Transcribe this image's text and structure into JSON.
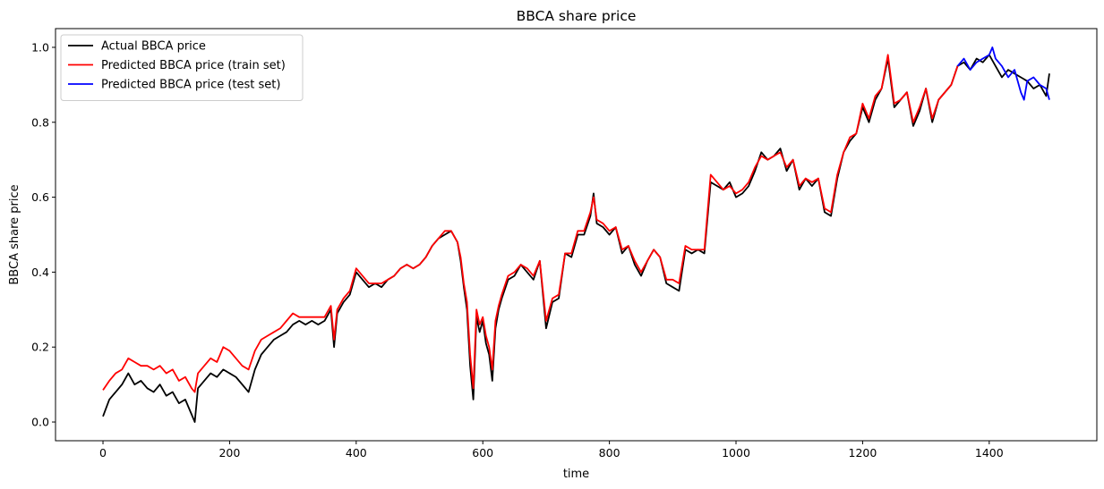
{
  "chart_data": {
    "type": "line",
    "title": "BBCA share price",
    "xlabel": "time",
    "ylabel": "BBCA share price",
    "xlim": [
      -75,
      1570
    ],
    "ylim": [
      -0.05,
      1.05
    ],
    "xticks": [
      0,
      200,
      400,
      600,
      800,
      1000,
      1200,
      1400
    ],
    "yticks": [
      0.0,
      0.2,
      0.4,
      0.6,
      0.8,
      1.0
    ],
    "xtick_labels": [
      "0",
      "200",
      "400",
      "600",
      "800",
      "1000",
      "1200",
      "1400"
    ],
    "ytick_labels": [
      "0.0",
      "0.2",
      "0.4",
      "0.6",
      "0.8",
      "1.0"
    ],
    "grid": false,
    "legend_position": "top-left",
    "series": [
      {
        "name": "Actual BBCA price",
        "color": "#000000",
        "x": [
          0,
          10,
          20,
          30,
          40,
          50,
          60,
          70,
          80,
          90,
          100,
          110,
          120,
          130,
          140,
          145,
          150,
          160,
          170,
          180,
          190,
          200,
          210,
          220,
          230,
          240,
          250,
          260,
          270,
          280,
          290,
          300,
          310,
          320,
          330,
          340,
          350,
          360,
          365,
          370,
          380,
          390,
          400,
          410,
          420,
          430,
          440,
          450,
          460,
          470,
          480,
          490,
          500,
          510,
          520,
          530,
          540,
          550,
          560,
          565,
          570,
          575,
          580,
          585,
          590,
          595,
          600,
          605,
          610,
          615,
          620,
          625,
          630,
          640,
          650,
          660,
          670,
          680,
          690,
          700,
          710,
          720,
          730,
          740,
          750,
          760,
          770,
          775,
          780,
          790,
          800,
          810,
          820,
          830,
          840,
          850,
          860,
          870,
          880,
          890,
          900,
          910,
          920,
          930,
          940,
          950,
          960,
          970,
          980,
          990,
          1000,
          1010,
          1020,
          1030,
          1040,
          1050,
          1060,
          1070,
          1080,
          1090,
          1100,
          1110,
          1120,
          1130,
          1140,
          1150,
          1160,
          1170,
          1180,
          1190,
          1200,
          1210,
          1220,
          1230,
          1240,
          1250,
          1260,
          1270,
          1280,
          1290,
          1300,
          1310,
          1320,
          1330,
          1340,
          1350,
          1360,
          1370,
          1380,
          1390,
          1400,
          1410,
          1420,
          1430,
          1440,
          1450,
          1460,
          1470,
          1480,
          1490,
          1495
        ],
        "y": [
          0.015,
          0.06,
          0.08,
          0.1,
          0.13,
          0.1,
          0.11,
          0.09,
          0.08,
          0.1,
          0.07,
          0.08,
          0.05,
          0.06,
          0.02,
          0.0,
          0.09,
          0.11,
          0.13,
          0.12,
          0.14,
          0.13,
          0.12,
          0.1,
          0.08,
          0.14,
          0.18,
          0.2,
          0.22,
          0.23,
          0.24,
          0.26,
          0.27,
          0.26,
          0.27,
          0.26,
          0.27,
          0.3,
          0.2,
          0.29,
          0.32,
          0.34,
          0.4,
          0.38,
          0.36,
          0.37,
          0.36,
          0.38,
          0.39,
          0.41,
          0.42,
          0.41,
          0.42,
          0.44,
          0.47,
          0.49,
          0.5,
          0.51,
          0.48,
          0.43,
          0.36,
          0.3,
          0.15,
          0.06,
          0.28,
          0.24,
          0.27,
          0.21,
          0.18,
          0.11,
          0.25,
          0.3,
          0.33,
          0.38,
          0.39,
          0.42,
          0.4,
          0.38,
          0.43,
          0.25,
          0.32,
          0.33,
          0.45,
          0.44,
          0.5,
          0.5,
          0.55,
          0.61,
          0.53,
          0.52,
          0.5,
          0.52,
          0.45,
          0.47,
          0.42,
          0.39,
          0.43,
          0.46,
          0.44,
          0.37,
          0.36,
          0.35,
          0.46,
          0.45,
          0.46,
          0.45,
          0.64,
          0.63,
          0.62,
          0.64,
          0.6,
          0.61,
          0.63,
          0.67,
          0.72,
          0.7,
          0.71,
          0.73,
          0.67,
          0.7,
          0.62,
          0.65,
          0.63,
          0.65,
          0.56,
          0.55,
          0.65,
          0.72,
          0.75,
          0.77,
          0.84,
          0.8,
          0.86,
          0.89,
          0.97,
          0.84,
          0.86,
          0.88,
          0.79,
          0.83,
          0.89,
          0.8,
          0.86,
          0.88,
          0.9,
          0.95,
          0.96,
          0.94,
          0.97,
          0.96,
          0.98,
          0.95,
          0.92,
          0.94,
          0.93,
          0.92,
          0.91,
          0.89,
          0.9,
          0.87,
          0.93
        ]
      },
      {
        "name": "Predicted BBCA price (train set)",
        "color": "#ff0000",
        "x": [
          0,
          10,
          20,
          30,
          40,
          50,
          60,
          70,
          80,
          90,
          100,
          110,
          120,
          130,
          140,
          145,
          150,
          160,
          170,
          180,
          190,
          200,
          210,
          220,
          230,
          240,
          250,
          260,
          270,
          280,
          290,
          300,
          310,
          320,
          330,
          340,
          350,
          360,
          365,
          370,
          380,
          390,
          400,
          410,
          420,
          430,
          440,
          450,
          460,
          470,
          480,
          490,
          500,
          510,
          520,
          530,
          540,
          550,
          560,
          565,
          570,
          575,
          580,
          585,
          590,
          595,
          600,
          605,
          610,
          615,
          620,
          625,
          630,
          640,
          650,
          660,
          670,
          680,
          690,
          700,
          710,
          720,
          730,
          740,
          750,
          760,
          770,
          775,
          780,
          790,
          800,
          810,
          820,
          830,
          840,
          850,
          860,
          870,
          880,
          890,
          900,
          910,
          920,
          930,
          940,
          950,
          960,
          970,
          980,
          990,
          1000,
          1010,
          1020,
          1030,
          1040,
          1050,
          1060,
          1070,
          1080,
          1090,
          1100,
          1110,
          1120,
          1130,
          1140,
          1150,
          1160,
          1170,
          1180,
          1190,
          1200,
          1210,
          1220,
          1230,
          1240,
          1250,
          1260,
          1270,
          1280,
          1290,
          1300,
          1310,
          1320,
          1330,
          1340,
          1350
        ],
        "y": [
          0.085,
          0.11,
          0.13,
          0.14,
          0.17,
          0.16,
          0.15,
          0.15,
          0.14,
          0.15,
          0.13,
          0.14,
          0.11,
          0.12,
          0.09,
          0.08,
          0.13,
          0.15,
          0.17,
          0.16,
          0.2,
          0.19,
          0.17,
          0.15,
          0.14,
          0.19,
          0.22,
          0.23,
          0.24,
          0.25,
          0.27,
          0.29,
          0.28,
          0.28,
          0.28,
          0.28,
          0.28,
          0.31,
          0.22,
          0.3,
          0.33,
          0.35,
          0.41,
          0.39,
          0.37,
          0.37,
          0.37,
          0.38,
          0.39,
          0.41,
          0.42,
          0.41,
          0.42,
          0.44,
          0.47,
          0.49,
          0.51,
          0.51,
          0.48,
          0.44,
          0.37,
          0.32,
          0.18,
          0.09,
          0.3,
          0.26,
          0.28,
          0.23,
          0.2,
          0.14,
          0.27,
          0.31,
          0.34,
          0.39,
          0.4,
          0.42,
          0.41,
          0.39,
          0.43,
          0.27,
          0.33,
          0.34,
          0.45,
          0.45,
          0.51,
          0.51,
          0.56,
          0.6,
          0.54,
          0.53,
          0.51,
          0.52,
          0.46,
          0.47,
          0.43,
          0.4,
          0.43,
          0.46,
          0.44,
          0.38,
          0.38,
          0.37,
          0.47,
          0.46,
          0.46,
          0.46,
          0.66,
          0.64,
          0.62,
          0.63,
          0.61,
          0.62,
          0.64,
          0.68,
          0.71,
          0.7,
          0.71,
          0.72,
          0.68,
          0.7,
          0.63,
          0.65,
          0.64,
          0.65,
          0.57,
          0.56,
          0.66,
          0.72,
          0.76,
          0.77,
          0.85,
          0.81,
          0.87,
          0.89,
          0.98,
          0.85,
          0.86,
          0.88,
          0.8,
          0.84,
          0.89,
          0.81,
          0.86,
          0.88,
          0.9,
          0.95
        ]
      },
      {
        "name": "Predicted BBCA price (test set)",
        "color": "#0000ff",
        "x": [
          1350,
          1360,
          1370,
          1380,
          1390,
          1400,
          1405,
          1410,
          1420,
          1430,
          1440,
          1450,
          1455,
          1460,
          1470,
          1480,
          1490,
          1495
        ],
        "y": [
          0.95,
          0.97,
          0.94,
          0.96,
          0.97,
          0.98,
          1.0,
          0.97,
          0.95,
          0.92,
          0.94,
          0.88,
          0.86,
          0.91,
          0.92,
          0.9,
          0.89,
          0.86
        ]
      }
    ]
  }
}
